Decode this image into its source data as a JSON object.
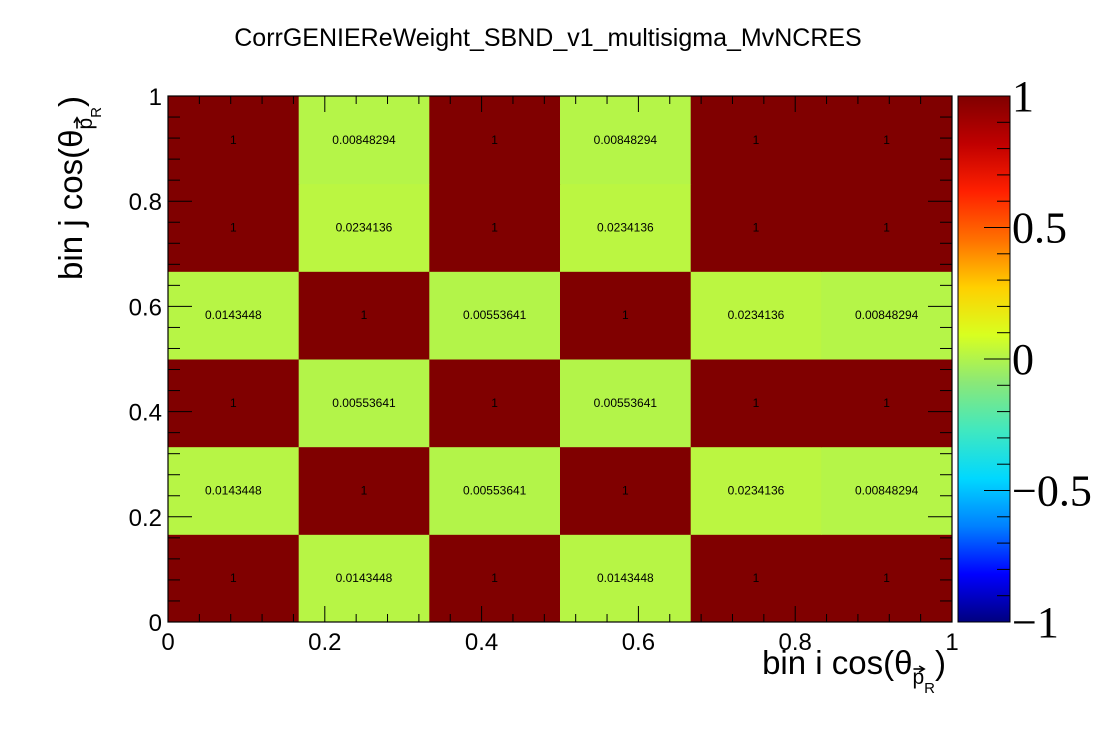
{
  "chart_data": {
    "type": "heatmap",
    "title": "CorrGENIEReWeight_SBND_v1_multisigma_MvNCRES",
    "xlabel": {
      "prefix": "bin i cos(θ",
      "sub": "p",
      "subsub": "R",
      "suffix": ")"
    },
    "ylabel": {
      "prefix": "bin j cos(θ",
      "sub": "p",
      "subsub": "R",
      "suffix": ")"
    },
    "xlim": [
      0,
      1
    ],
    "ylim": [
      0,
      1
    ],
    "x_edges": [
      0,
      0.1667,
      0.3333,
      0.5,
      0.6667,
      0.8333,
      1
    ],
    "y_edges": [
      0,
      0.1667,
      0.3333,
      0.5,
      0.6667,
      0.8333,
      1
    ],
    "x_ticks": [
      {
        "value": 0,
        "label": "0"
      },
      {
        "value": 0.2,
        "label": "0.2"
      },
      {
        "value": 0.4,
        "label": "0.4"
      },
      {
        "value": 0.6,
        "label": "0.6"
      },
      {
        "value": 0.8,
        "label": "0.8"
      },
      {
        "value": 1,
        "label": "1"
      }
    ],
    "y_ticks": [
      {
        "value": 0,
        "label": "0"
      },
      {
        "value": 0.2,
        "label": "0.2"
      },
      {
        "value": 0.4,
        "label": "0.4"
      },
      {
        "value": 0.6,
        "label": "0.6"
      },
      {
        "value": 0.8,
        "label": "0.8"
      },
      {
        "value": 1,
        "label": "1"
      }
    ],
    "cells": [
      [
        {
          "v": 1,
          "label": "1"
        },
        {
          "v": 0.0143448,
          "label": "0.0143448"
        },
        {
          "v": 1,
          "label": "1"
        },
        {
          "v": 0.0143448,
          "label": "0.0143448"
        },
        {
          "v": 1,
          "label": "1"
        },
        {
          "v": 1,
          "label": "1"
        }
      ],
      [
        {
          "v": 0.0143448,
          "label": "0.0143448"
        },
        {
          "v": 1,
          "label": "1"
        },
        {
          "v": 0.00553641,
          "label": "0.00553641"
        },
        {
          "v": 1,
          "label": "1"
        },
        {
          "v": 0.0234136,
          "label": "0.0234136"
        },
        {
          "v": 0.00848294,
          "label": "0.00848294"
        }
      ],
      [
        {
          "v": 1,
          "label": "1"
        },
        {
          "v": 0.00553641,
          "label": "0.00553641"
        },
        {
          "v": 1,
          "label": "1"
        },
        {
          "v": 0.00553641,
          "label": "0.00553641"
        },
        {
          "v": 1,
          "label": "1"
        },
        {
          "v": 1,
          "label": "1"
        }
      ],
      [
        {
          "v": 0.0143448,
          "label": "0.0143448"
        },
        {
          "v": 1,
          "label": "1"
        },
        {
          "v": 0.00553641,
          "label": "0.00553641"
        },
        {
          "v": 1,
          "label": "1"
        },
        {
          "v": 0.0234136,
          "label": "0.0234136"
        },
        {
          "v": 0.00848294,
          "label": "0.00848294"
        }
      ],
      [
        {
          "v": 1,
          "label": "1"
        },
        {
          "v": 0.0234136,
          "label": "0.0234136"
        },
        {
          "v": 1,
          "label": "1"
        },
        {
          "v": 0.0234136,
          "label": "0.0234136"
        },
        {
          "v": 1,
          "label": "1"
        },
        {
          "v": 1,
          "label": "1"
        }
      ],
      [
        {
          "v": 1,
          "label": "1"
        },
        {
          "v": 0.00848294,
          "label": "0.00848294"
        },
        {
          "v": 1,
          "label": "1"
        },
        {
          "v": 0.00848294,
          "label": "0.00848294"
        },
        {
          "v": 1,
          "label": "1"
        },
        {
          "v": 1,
          "label": "1"
        }
      ]
    ],
    "colorbar": {
      "range": [
        -1,
        1
      ],
      "ticks": [
        {
          "value": 1,
          "label": "1"
        },
        {
          "value": 0.5,
          "label": "0.5"
        },
        {
          "value": 0,
          "label": "0"
        },
        {
          "value": -0.5,
          "label": "−0.5"
        },
        {
          "value": -1,
          "label": "−1"
        }
      ],
      "palette": [
        "#00007f",
        "#0000ff",
        "#0080ff",
        "#00d8ff",
        "#40e8c0",
        "#8ae878",
        "#d8ff20",
        "#ffd000",
        "#ff7000",
        "#ff2000",
        "#c00000",
        "#800000"
      ]
    },
    "grid": false
  }
}
